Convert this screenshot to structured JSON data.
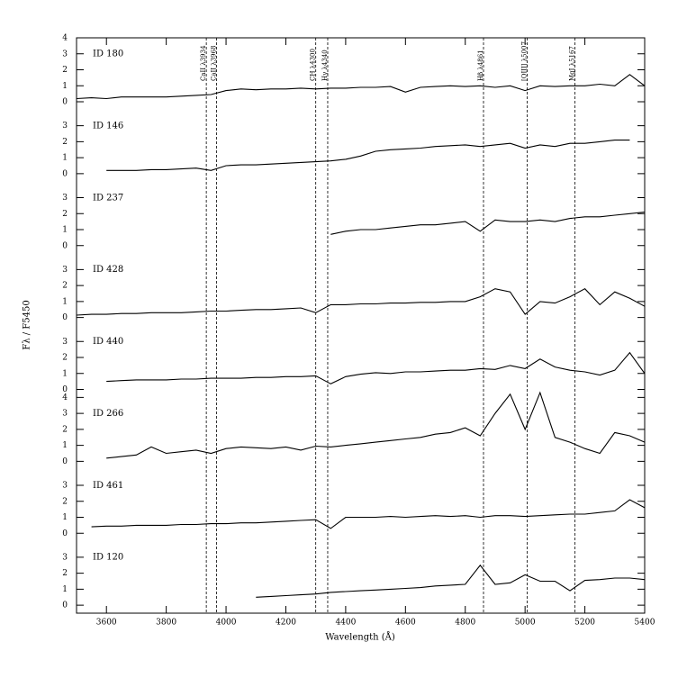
{
  "chart_data": {
    "type": "line",
    "xlabel": "Wavelength (Å)",
    "ylabel": "Fλ / F5450",
    "xlim": [
      3500,
      5400
    ],
    "xticks": [
      3600,
      3800,
      4000,
      4200,
      4400,
      4600,
      4800,
      5000,
      5200,
      5400
    ],
    "lines": [
      {
        "label": "CaII λ3934",
        "x": 3934
      },
      {
        "label": "CaII λ3968",
        "x": 3968
      },
      {
        "label": "CH λ4300",
        "x": 4300
      },
      {
        "label": "Hγ λ4340",
        "x": 4340
      },
      {
        "label": "Hβ λ4861",
        "x": 4861
      },
      {
        "label": "[OIII] λ5007",
        "x": 5007
      },
      {
        "label": "MgI λ5167",
        "x": 5167
      }
    ],
    "series": [
      {
        "name": "ID 180",
        "color": "#000000",
        "ylim": [
          -0.5,
          4
        ],
        "yticks": [
          0,
          1,
          2,
          3,
          4
        ],
        "x": [
          3500,
          3550,
          3600,
          3650,
          3700,
          3750,
          3800,
          3850,
          3900,
          3950,
          4000,
          4050,
          4100,
          4150,
          4200,
          4250,
          4300,
          4350,
          4400,
          4450,
          4500,
          4550,
          4600,
          4650,
          4700,
          4750,
          4800,
          4850,
          4900,
          4950,
          5000,
          5050,
          5100,
          5150,
          5200,
          5250,
          5300,
          5350,
          5400
        ],
        "values": [
          0.2,
          0.25,
          0.2,
          0.3,
          0.3,
          0.3,
          0.3,
          0.35,
          0.4,
          0.45,
          0.7,
          0.8,
          0.75,
          0.8,
          0.8,
          0.85,
          0.8,
          0.85,
          0.85,
          0.9,
          0.9,
          0.95,
          0.6,
          0.9,
          0.95,
          1.0,
          0.95,
          1.0,
          0.9,
          1.0,
          0.7,
          1.0,
          0.95,
          1.0,
          1.0,
          1.1,
          1.0,
          1.7,
          1.0
        ]
      },
      {
        "name": "ID 146",
        "color": "#000000",
        "ylim": [
          -0.5,
          4
        ],
        "yticks": [
          0,
          1,
          2,
          3
        ],
        "x": [
          3600,
          3650,
          3700,
          3750,
          3800,
          3850,
          3900,
          3950,
          4000,
          4050,
          4100,
          4150,
          4200,
          4250,
          4300,
          4350,
          4400,
          4450,
          4500,
          4550,
          4600,
          4650,
          4700,
          4750,
          4800,
          4850,
          4900,
          4950,
          5000,
          5050,
          5100,
          5150,
          5200,
          5250,
          5300,
          5350
        ],
        "values": [
          0.2,
          0.2,
          0.2,
          0.25,
          0.25,
          0.3,
          0.35,
          0.2,
          0.5,
          0.55,
          0.55,
          0.6,
          0.65,
          0.7,
          0.75,
          0.8,
          0.9,
          1.1,
          1.4,
          1.5,
          1.55,
          1.6,
          1.7,
          1.75,
          1.8,
          1.7,
          1.8,
          1.9,
          1.6,
          1.8,
          1.7,
          1.9,
          1.9,
          2.0,
          2.1,
          2.1
        ]
      },
      {
        "name": "ID 237",
        "color": "#000000",
        "ylim": [
          -0.5,
          4
        ],
        "yticks": [
          0,
          1,
          2,
          3
        ],
        "x": [
          4350,
          4400,
          4450,
          4500,
          4550,
          4600,
          4650,
          4700,
          4750,
          4800,
          4850,
          4900,
          4950,
          5000,
          5050,
          5100,
          5150,
          5200,
          5250,
          5300,
          5350,
          5400
        ],
        "values": [
          0.7,
          0.9,
          1.0,
          1.0,
          1.1,
          1.2,
          1.3,
          1.3,
          1.4,
          1.5,
          0.9,
          1.6,
          1.5,
          1.5,
          1.6,
          1.5,
          1.7,
          1.8,
          1.8,
          1.9,
          2.0,
          2.1
        ]
      },
      {
        "name": "ID 428",
        "color": "#000000",
        "ylim": [
          -0.5,
          4
        ],
        "yticks": [
          0,
          1,
          2,
          3
        ],
        "x": [
          3500,
          3550,
          3600,
          3650,
          3700,
          3750,
          3800,
          3850,
          3900,
          3950,
          4000,
          4050,
          4100,
          4150,
          4200,
          4250,
          4300,
          4350,
          4400,
          4450,
          4500,
          4550,
          4600,
          4650,
          4700,
          4750,
          4800,
          4850,
          4900,
          4950,
          5000,
          5050,
          5100,
          5150,
          5200,
          5250,
          5300,
          5350,
          5400
        ],
        "values": [
          0.15,
          0.2,
          0.2,
          0.25,
          0.25,
          0.3,
          0.3,
          0.3,
          0.35,
          0.4,
          0.4,
          0.45,
          0.5,
          0.5,
          0.55,
          0.6,
          0.3,
          0.8,
          0.8,
          0.85,
          0.85,
          0.9,
          0.9,
          0.95,
          0.95,
          1.0,
          1.0,
          1.3,
          1.8,
          1.6,
          0.2,
          1.0,
          0.9,
          1.3,
          1.8,
          0.8,
          1.6,
          1.2,
          0.7
        ]
      },
      {
        "name": "ID 440",
        "color": "#000000",
        "ylim": [
          -0.5,
          4
        ],
        "yticks": [
          0,
          1,
          2,
          3
        ],
        "x": [
          3600,
          3650,
          3700,
          3750,
          3800,
          3850,
          3900,
          3950,
          4000,
          4050,
          4100,
          4150,
          4200,
          4250,
          4300,
          4350,
          4400,
          4450,
          4500,
          4550,
          4600,
          4650,
          4700,
          4750,
          4800,
          4850,
          4900,
          4950,
          5000,
          5050,
          5100,
          5150,
          5200,
          5250,
          5300,
          5350,
          5400
        ],
        "values": [
          0.5,
          0.55,
          0.6,
          0.6,
          0.6,
          0.65,
          0.65,
          0.7,
          0.7,
          0.7,
          0.75,
          0.75,
          0.8,
          0.8,
          0.85,
          0.35,
          0.8,
          0.95,
          1.05,
          1.0,
          1.1,
          1.1,
          1.15,
          1.2,
          1.2,
          1.3,
          1.25,
          1.5,
          1.3,
          1.9,
          1.4,
          1.2,
          1.1,
          0.9,
          1.2,
          2.3,
          1.0
        ]
      },
      {
        "name": "ID 266",
        "color": "#000000",
        "ylim": [
          -0.5,
          4
        ],
        "yticks": [
          0,
          1,
          2,
          3,
          4
        ],
        "x": [
          3600,
          3650,
          3700,
          3750,
          3800,
          3850,
          3900,
          3950,
          4000,
          4050,
          4100,
          4150,
          4200,
          4250,
          4300,
          4350,
          4400,
          4450,
          4500,
          4550,
          4600,
          4650,
          4700,
          4750,
          4800,
          4850,
          4900,
          4950,
          5000,
          5050,
          5100,
          5150,
          5200,
          5250,
          5300,
          5350,
          5400
        ],
        "values": [
          0.2,
          0.3,
          0.4,
          0.9,
          0.5,
          0.6,
          0.7,
          0.5,
          0.8,
          0.9,
          0.85,
          0.8,
          0.9,
          0.7,
          0.95,
          0.9,
          1.0,
          1.1,
          1.2,
          1.3,
          1.4,
          1.5,
          1.7,
          1.8,
          2.1,
          1.6,
          3.0,
          4.2,
          2.0,
          4.3,
          1.5,
          1.2,
          0.8,
          0.5,
          1.8,
          1.6,
          1.2
        ]
      },
      {
        "name": "ID 461",
        "color": "#000000",
        "ylim": [
          -0.5,
          4
        ],
        "yticks": [
          0,
          1,
          2,
          3
        ],
        "x": [
          3550,
          3600,
          3650,
          3700,
          3750,
          3800,
          3850,
          3900,
          3950,
          4000,
          4050,
          4100,
          4150,
          4200,
          4250,
          4300,
          4350,
          4400,
          4450,
          4500,
          4550,
          4600,
          4650,
          4700,
          4750,
          4800,
          4850,
          4900,
          4950,
          5000,
          5050,
          5100,
          5150,
          5200,
          5250,
          5300,
          5350,
          5400
        ],
        "values": [
          0.4,
          0.45,
          0.45,
          0.5,
          0.5,
          0.5,
          0.55,
          0.55,
          0.6,
          0.6,
          0.65,
          0.65,
          0.7,
          0.75,
          0.8,
          0.85,
          0.3,
          1.0,
          1.0,
          1.0,
          1.05,
          1.0,
          1.05,
          1.1,
          1.05,
          1.1,
          1.0,
          1.1,
          1.1,
          1.05,
          1.1,
          1.15,
          1.2,
          1.2,
          1.3,
          1.4,
          2.1,
          1.6
        ]
      },
      {
        "name": "ID 120",
        "color": "#000000",
        "ylim": [
          -0.5,
          4
        ],
        "yticks": [
          0,
          1,
          2,
          3
        ],
        "x": [
          4100,
          4150,
          4200,
          4250,
          4300,
          4350,
          4400,
          4450,
          4500,
          4550,
          4600,
          4650,
          4700,
          4750,
          4800,
          4850,
          4900,
          4950,
          5000,
          5050,
          5100,
          5150,
          5200,
          5250,
          5300,
          5350,
          5400
        ],
        "values": [
          0.5,
          0.55,
          0.6,
          0.65,
          0.7,
          0.8,
          0.85,
          0.9,
          0.95,
          1.0,
          1.05,
          1.1,
          1.2,
          1.25,
          1.3,
          2.5,
          1.3,
          1.4,
          1.9,
          1.5,
          1.5,
          0.9,
          1.55,
          1.6,
          1.7,
          1.7,
          1.6
        ]
      }
    ]
  }
}
